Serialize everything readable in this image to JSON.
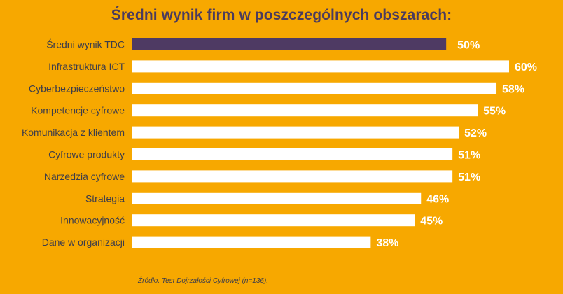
{
  "title": "Średni wynik firm w poszczególnych obszarach:",
  "footnote": "Źródło. Test Dojrzałości Cyfrowej (n=136).",
  "colors": {
    "background": "#F7A800",
    "highlight_bar": "#4E3A63",
    "bar": "#FFFFFF",
    "category_text": "#3d3d4a",
    "value_text": "#FFFFFF",
    "title_text": "#4B3B5E"
  },
  "chart_data": {
    "type": "bar",
    "orientation": "horizontal",
    "categories": [
      "Średni wynik TDC",
      "Infrastruktura ICT",
      "Cyberbezpieczeństwo",
      "Kompetencje cyfrowe",
      "Komunikacja z klientem",
      "Cyfrowe produkty",
      "Narzedzia cyfrowe",
      "Strategia",
      "Innowacyjność",
      "Dane w organizacji"
    ],
    "values": [
      50,
      60,
      58,
      55,
      52,
      51,
      51,
      46,
      45,
      38
    ],
    "value_labels": [
      "50%",
      "60%",
      "58%",
      "55%",
      "52%",
      "51%",
      "51%",
      "46%",
      "45%",
      "38%"
    ],
    "highlight_index": 0,
    "unit": "%",
    "xlim": [
      0,
      60
    ],
    "grid": false,
    "legend": "none"
  }
}
